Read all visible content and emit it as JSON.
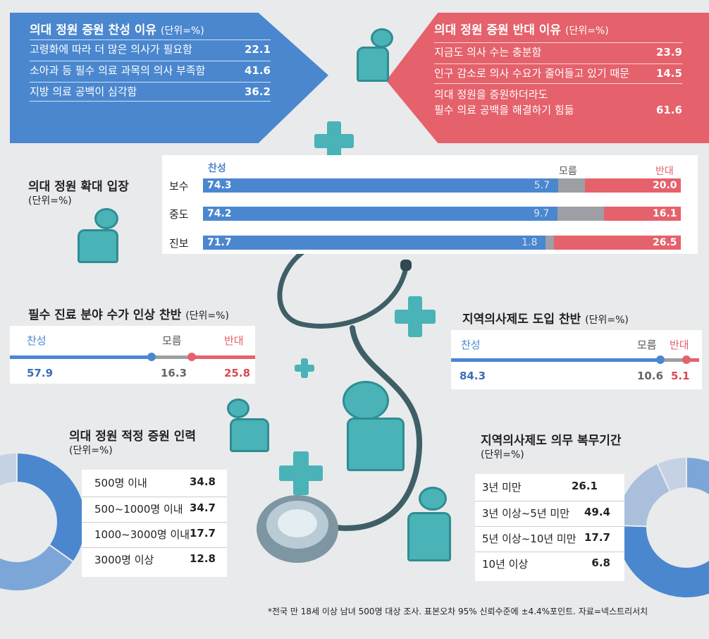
{
  "support_reasons": {
    "title": "의대 정원 증원 찬성 이유",
    "unit": "(단위=%)",
    "items": [
      {
        "label": "고령화에 따라 더 많은 의사가 필요함",
        "value": "22.1"
      },
      {
        "label": "소아과 등 필수 의료 과목의 의사 부족함",
        "value": "41.6"
      },
      {
        "label": "지방 의료 공백이 심각함",
        "value": "36.2"
      }
    ]
  },
  "oppose_reasons": {
    "title": "의대 정원 증원 반대 이유",
    "unit": "(단위=%)",
    "items": [
      {
        "label": "지금도 의사 수는 충분함",
        "value": "23.9"
      },
      {
        "label": "인구 감소로 의사 수요가 줄어들고 있기 때문",
        "value": "14.5"
      },
      {
        "label": "의대 정원을 증원하더라도\n필수 의료 공백을 해결하기 힘듦",
        "value": "61.6"
      }
    ]
  },
  "chart_data": [
    {
      "type": "bar",
      "stacked": true,
      "orientation": "horizontal",
      "title": "의대 정원 확대 입장",
      "unit": "(단위=%)",
      "categories": [
        "보수",
        "중도",
        "진보"
      ],
      "series": [
        {
          "name": "찬성",
          "values": [
            74.3,
            74.2,
            71.7
          ],
          "color": "#4a87cf"
        },
        {
          "name": "모름",
          "values": [
            5.7,
            9.7,
            1.8
          ],
          "color": "#9c9fa3"
        },
        {
          "name": "반대",
          "values": [
            20.0,
            16.1,
            26.5
          ],
          "color": "#e5616b"
        }
      ],
      "labels": {
        "찬성": [
          "74.3",
          "74.2",
          "71.7"
        ],
        "모름": [
          "5.7",
          "9.7",
          "1.8"
        ],
        "반대": [
          "20.0",
          "16.1",
          "26.5"
        ]
      },
      "xlim": [
        0,
        100
      ]
    },
    {
      "type": "bar",
      "stacked": true,
      "title": "필수 진료 분야 수가 인상 찬반",
      "unit": "(단위=%)",
      "categories": [
        "찬성",
        "모름",
        "반대"
      ],
      "values": [
        57.9,
        16.3,
        25.8
      ],
      "labels": [
        "57.9",
        "16.3",
        "25.8"
      ],
      "colors": [
        "#4a87cf",
        "#9c9fa3",
        "#e5616b"
      ]
    },
    {
      "type": "bar",
      "stacked": true,
      "title": "지역의사제도 도입 찬반",
      "unit": "(단위=%)",
      "categories": [
        "찬성",
        "모름",
        "반대"
      ],
      "values": [
        84.3,
        10.6,
        5.1
      ],
      "labels": [
        "84.3",
        "10.6",
        "5.1"
      ],
      "colors": [
        "#4a87cf",
        "#9c9fa3",
        "#e5616b"
      ]
    },
    {
      "type": "pie",
      "donut": true,
      "title": "의대 정원 적정 증원 인력",
      "unit": "(단위=%)",
      "categories": [
        "500명 이내",
        "500~1000명 이내",
        "1000~3000명 이내",
        "3000명 이상"
      ],
      "values": [
        34.8,
        34.7,
        17.7,
        12.8
      ],
      "labels": [
        "34.8",
        "34.7",
        "17.7",
        "12.8"
      ],
      "colors": [
        "#4a87cf",
        "#7da6d8",
        "#a9bfdc",
        "#c5d2e4"
      ]
    },
    {
      "type": "pie",
      "donut": true,
      "title": "지역의사제도 의무 복무기간",
      "unit": "(단위=%)",
      "categories": [
        "3년 미만",
        "3년 이상~5년 미만",
        "5년 이상~10년 미만",
        "10년 이상"
      ],
      "values": [
        26.1,
        49.4,
        17.7,
        6.8
      ],
      "labels": [
        "26.1",
        "49.4",
        "17.7",
        "6.8"
      ],
      "colors": [
        "#7da6d8",
        "#4a87cf",
        "#a9bfdc",
        "#c5d2e4"
      ]
    }
  ],
  "footnote": "*전국 만 18세 이상 남녀 500명 대상 조사. 표본오차 95% 신뢰수준에 ±4.4%포인트. 자료=넥스트리서치",
  "colors": {
    "support": "#4a87cf",
    "unknown": "#9c9fa3",
    "oppose": "#e5616b",
    "accent": "#49b3b7"
  }
}
